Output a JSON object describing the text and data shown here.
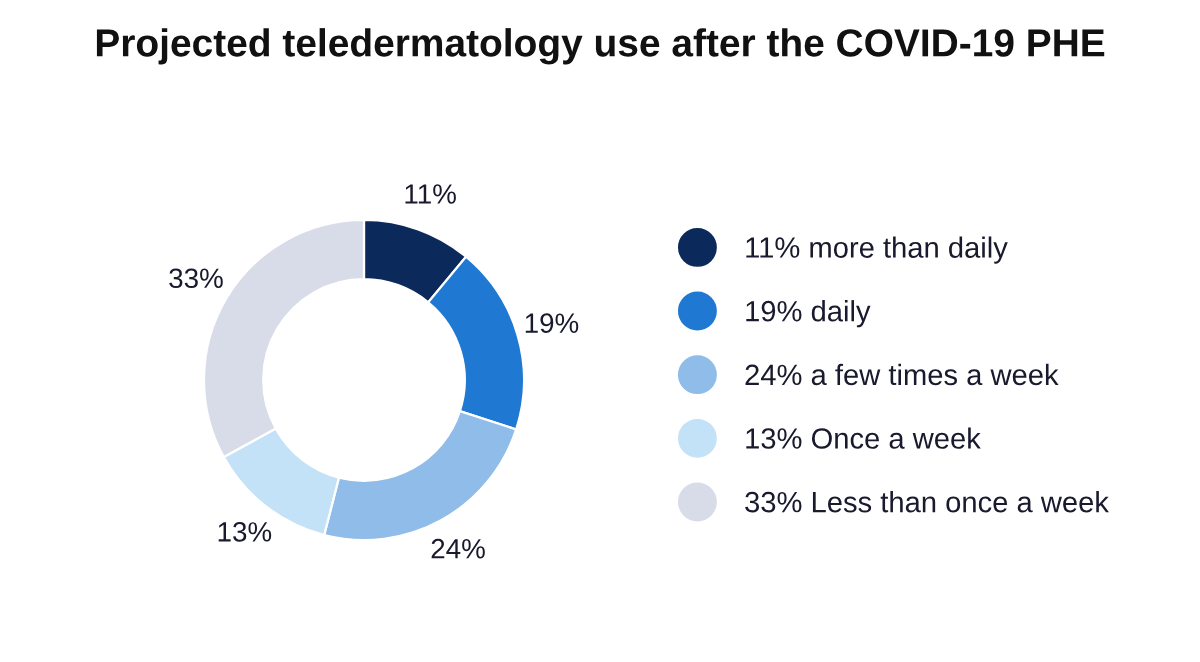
{
  "chart_data": {
    "type": "donut",
    "title": "Projected teledermatology use after the COVID-19 PHE",
    "categories": [
      "11% more than daily",
      "19% daily",
      "24% a few times a week",
      "13% Once a week",
      "33% Less than once a week"
    ],
    "values": [
      11,
      19,
      24,
      13,
      33
    ],
    "value_labels": [
      "11%",
      "19%",
      "24%",
      "13%",
      "33%"
    ],
    "colors": [
      "#0b2a5b",
      "#1f78d1",
      "#8fbce8",
      "#c4e2f7",
      "#d8dce8"
    ],
    "legend": "right"
  }
}
